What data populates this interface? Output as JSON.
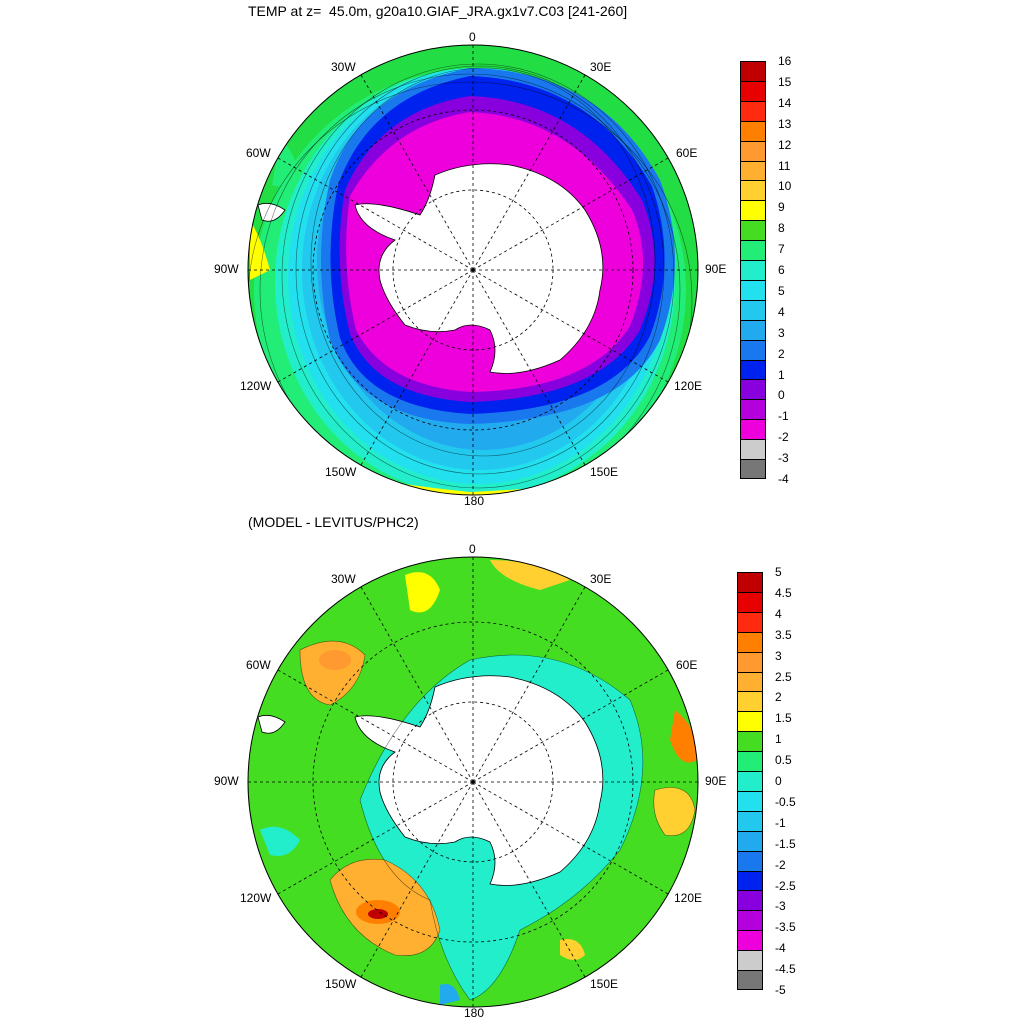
{
  "titles": {
    "top": "TEMP at z=  45.0m, g20a10.GIAF_JRA.gx1v7.C03 [241-260]",
    "bottom": "(MODEL - LEVITUS/PHC2)"
  },
  "longitude_labels": [
    "0",
    "30E",
    "60E",
    "90E",
    "120E",
    "150E",
    "180",
    "150W",
    "120W",
    "90W",
    "60W",
    "30W"
  ],
  "top_colorbar": {
    "ticks": [
      "16",
      "15",
      "14",
      "13",
      "12",
      "11",
      "10",
      "9",
      "8",
      "7",
      "6",
      "5",
      "4",
      "3",
      "2",
      "1",
      "0",
      "-1",
      "-2",
      "-3",
      "-4"
    ],
    "colors": [
      "#c00000",
      "#e60000",
      "#ff2a10",
      "#ff8000",
      "#ff9a30",
      "#ffb030",
      "#ffd030",
      "#ffff00",
      "#44dd22",
      "#22ee77",
      "#22eecc",
      "#22e0ee",
      "#22c8ee",
      "#22aaee",
      "#1a78ee",
      "#0022ee",
      "#8800dd",
      "#b400dd",
      "#ee00dd",
      "#cccccc",
      "#777777"
    ]
  },
  "bottom_colorbar": {
    "ticks": [
      "5",
      "4.5",
      "4",
      "3.5",
      "3",
      "2.5",
      "2",
      "1.5",
      "1",
      "0.5",
      "0",
      "-0.5",
      "-1",
      "-1.5",
      "-2",
      "-2.5",
      "-3",
      "-3.5",
      "-4",
      "-4.5",
      "-5"
    ],
    "colors": [
      "#c00000",
      "#e60000",
      "#ff2a10",
      "#ff8000",
      "#ff9a30",
      "#ffb030",
      "#ffd030",
      "#ffff00",
      "#44dd22",
      "#22ee77",
      "#22eecc",
      "#22e0ee",
      "#22c8ee",
      "#22aaee",
      "#1a78ee",
      "#0022ee",
      "#8800dd",
      "#b400dd",
      "#ee00dd",
      "#cccccc",
      "#777777"
    ]
  }
}
